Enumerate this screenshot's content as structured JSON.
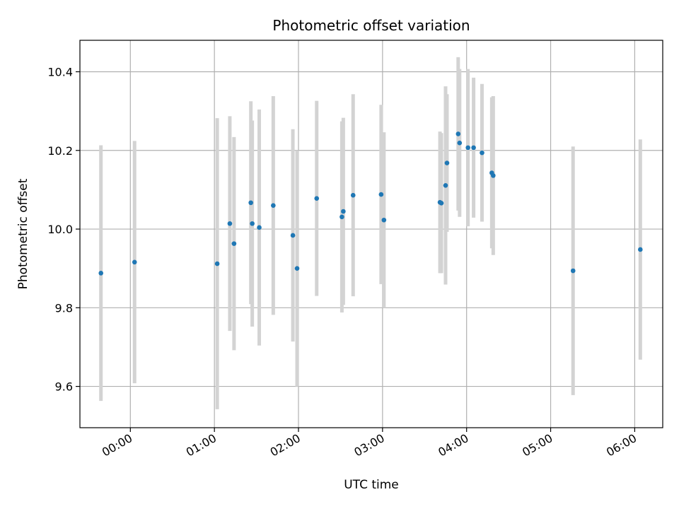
{
  "chart_data": {
    "type": "scatter",
    "title": "Photometric offset variation",
    "xlabel": "UTC time",
    "ylabel": "Photometric offset",
    "grid": true,
    "x_tick_labels": [
      "00:00",
      "01:00",
      "02:00",
      "03:00",
      "04:00",
      "05:00",
      "06:00"
    ],
    "y_tick_labels": [
      "9.6",
      "9.8",
      "10.0",
      "10.2",
      "10.4"
    ],
    "xlim": [
      "-00:36",
      "06:20"
    ],
    "ylim": [
      9.495,
      10.48
    ],
    "colors": {
      "point": "#1f77b4",
      "errorbar": "#d3d3d3",
      "grid": "#b0b0b0"
    },
    "points": [
      {
        "x": "-00:21",
        "y": 9.888,
        "err": 0.325
      },
      {
        "x": "00:03",
        "y": 9.916,
        "err": 0.308
      },
      {
        "x": "01:02",
        "y": 9.912,
        "err": 0.37
      },
      {
        "x": "01:11",
        "y": 10.014,
        "err": 0.273
      },
      {
        "x": "01:14",
        "y": 9.963,
        "err": 0.271
      },
      {
        "x": "01:26",
        "y": 10.067,
        "err": 0.258
      },
      {
        "x": "01:27",
        "y": 10.014,
        "err": 0.262
      },
      {
        "x": "01:32",
        "y": 10.004,
        "err": 0.3
      },
      {
        "x": "01:42",
        "y": 10.06,
        "err": 0.278
      },
      {
        "x": "01:56",
        "y": 9.984,
        "err": 0.27
      },
      {
        "x": "01:59",
        "y": 9.9,
        "err": 0.3
      },
      {
        "x": "02:13",
        "y": 10.078,
        "err": 0.248
      },
      {
        "x": "02:31",
        "y": 10.031,
        "err": 0.243
      },
      {
        "x": "02:32",
        "y": 10.045,
        "err": 0.238
      },
      {
        "x": "02:39",
        "y": 10.086,
        "err": 0.257
      },
      {
        "x": "02:59",
        "y": 10.088,
        "err": 0.228
      },
      {
        "x": "03:01",
        "y": 10.023,
        "err": 0.223
      },
      {
        "x": "03:41",
        "y": 10.068,
        "err": 0.18
      },
      {
        "x": "03:42",
        "y": 10.066,
        "err": 0.178
      },
      {
        "x": "03:45",
        "y": 10.111,
        "err": 0.252
      },
      {
        "x": "03:46",
        "y": 10.168,
        "err": 0.175
      },
      {
        "x": "03:54",
        "y": 10.242,
        "err": 0.195
      },
      {
        "x": "03:55",
        "y": 10.219,
        "err": 0.188
      },
      {
        "x": "04:01",
        "y": 10.207,
        "err": 0.2
      },
      {
        "x": "04:05",
        "y": 10.207,
        "err": 0.178
      },
      {
        "x": "04:11",
        "y": 10.194,
        "err": 0.175
      },
      {
        "x": "04:18",
        "y": 10.143,
        "err": 0.192
      },
      {
        "x": "04:19",
        "y": 10.136,
        "err": 0.202
      },
      {
        "x": "05:16",
        "y": 9.894,
        "err": 0.316
      },
      {
        "x": "06:04",
        "y": 9.948,
        "err": 0.28
      }
    ]
  }
}
